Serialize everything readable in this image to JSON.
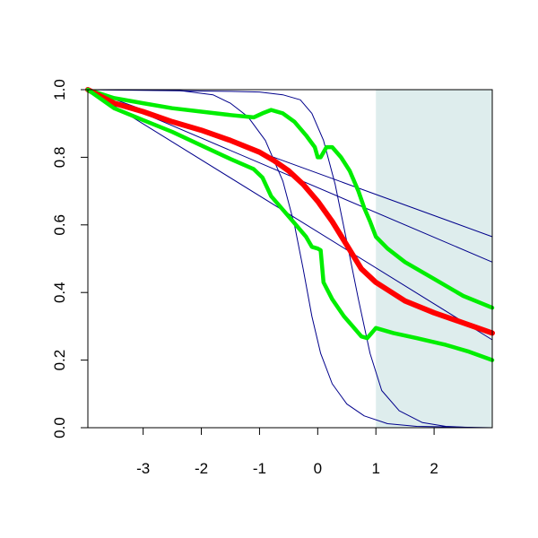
{
  "chart_data": {
    "type": "line",
    "title": "",
    "xlabel": "",
    "ylabel": "",
    "xlim": [
      -3.95,
      3.0
    ],
    "ylim": [
      0.0,
      1.0
    ],
    "x_ticks": [
      {
        "value": -3,
        "label": "-3"
      },
      {
        "value": -2,
        "label": "-2"
      },
      {
        "value": -1,
        "label": "-1"
      },
      {
        "value": 0,
        "label": "0"
      },
      {
        "value": 1,
        "label": "1"
      },
      {
        "value": 2,
        "label": "2"
      }
    ],
    "y_ticks": [
      {
        "value": 0.0,
        "label": "0.0"
      },
      {
        "value": 0.2,
        "label": "0.2"
      },
      {
        "value": 0.4,
        "label": "0.4"
      },
      {
        "value": 0.6,
        "label": "0.6"
      },
      {
        "value": 0.8,
        "label": "0.8"
      },
      {
        "value": 1.0,
        "label": "1.0"
      }
    ],
    "shaded_region": {
      "x_start": 1.0,
      "x_end": 3.0,
      "color": "#deeded"
    },
    "grid": false,
    "series": [
      {
        "color": "#00008b",
        "width": 1,
        "points": [
          [
            -3.95,
            1.0
          ],
          [
            3.0,
            0.565
          ]
        ]
      },
      {
        "color": "#00008b",
        "width": 1,
        "points": [
          [
            -3.95,
            1.0
          ],
          [
            3.0,
            0.49
          ]
        ]
      },
      {
        "color": "#00008b",
        "width": 1,
        "points": [
          [
            -3.95,
            1.0
          ],
          [
            3.0,
            0.26
          ]
        ]
      },
      {
        "color": "#00008b",
        "width": 1,
        "points": [
          [
            -3.95,
            1.0
          ],
          [
            -2.4,
            0.998
          ],
          [
            -1.8,
            0.985
          ],
          [
            -1.5,
            0.96
          ],
          [
            -1.2,
            0.92
          ],
          [
            -0.9,
            0.85
          ],
          [
            -0.6,
            0.73
          ],
          [
            -0.4,
            0.6
          ],
          [
            -0.25,
            0.47
          ],
          [
            -0.1,
            0.33
          ],
          [
            0.05,
            0.22
          ],
          [
            0.25,
            0.13
          ],
          [
            0.5,
            0.07
          ],
          [
            0.8,
            0.035
          ],
          [
            1.2,
            0.012
          ],
          [
            1.7,
            0.004
          ],
          [
            3.0,
            0.0
          ]
        ]
      },
      {
        "color": "#00008b",
        "width": 1,
        "points": [
          [
            -3.95,
            1.0
          ],
          [
            -1.5,
            0.995
          ],
          [
            -1.0,
            0.993
          ],
          [
            -0.6,
            0.985
          ],
          [
            -0.3,
            0.97
          ],
          [
            -0.1,
            0.93
          ],
          [
            0.1,
            0.85
          ],
          [
            0.3,
            0.72
          ],
          [
            0.5,
            0.55
          ],
          [
            0.7,
            0.38
          ],
          [
            0.9,
            0.22
          ],
          [
            1.1,
            0.11
          ],
          [
            1.4,
            0.05
          ],
          [
            1.8,
            0.015
          ],
          [
            2.2,
            0.004
          ],
          [
            2.7,
            0.0
          ]
        ]
      },
      {
        "color": "#00ee00",
        "width": 4.5,
        "points": [
          [
            -3.95,
            1.0
          ],
          [
            -3.5,
            0.975
          ],
          [
            -3.0,
            0.96
          ],
          [
            -2.5,
            0.945
          ],
          [
            -2.0,
            0.935
          ],
          [
            -1.5,
            0.925
          ],
          [
            -1.1,
            0.918
          ],
          [
            -0.95,
            0.93
          ],
          [
            -0.8,
            0.94
          ],
          [
            -0.6,
            0.93
          ],
          [
            -0.4,
            0.905
          ],
          [
            -0.2,
            0.865
          ],
          [
            -0.05,
            0.83
          ],
          [
            0.0,
            0.8
          ],
          [
            0.05,
            0.8
          ],
          [
            0.15,
            0.83
          ],
          [
            0.25,
            0.83
          ],
          [
            0.4,
            0.8
          ],
          [
            0.55,
            0.76
          ],
          [
            0.7,
            0.7
          ],
          [
            0.8,
            0.65
          ],
          [
            0.9,
            0.61
          ],
          [
            1.0,
            0.565
          ],
          [
            1.2,
            0.53
          ],
          [
            1.5,
            0.49
          ],
          [
            2.0,
            0.44
          ],
          [
            2.5,
            0.39
          ],
          [
            3.0,
            0.355
          ]
        ]
      },
      {
        "color": "#ff0000",
        "width": 6,
        "points": [
          [
            -3.95,
            1.0
          ],
          [
            -3.5,
            0.96
          ],
          [
            -3.0,
            0.935
          ],
          [
            -2.5,
            0.905
          ],
          [
            -2.0,
            0.88
          ],
          [
            -1.5,
            0.85
          ],
          [
            -1.0,
            0.815
          ],
          [
            -0.75,
            0.79
          ],
          [
            -0.5,
            0.76
          ],
          [
            -0.25,
            0.72
          ],
          [
            0.0,
            0.67
          ],
          [
            0.25,
            0.61
          ],
          [
            0.5,
            0.54
          ],
          [
            0.75,
            0.47
          ],
          [
            1.0,
            0.43
          ],
          [
            1.5,
            0.375
          ],
          [
            2.0,
            0.34
          ],
          [
            2.5,
            0.31
          ],
          [
            3.0,
            0.28
          ]
        ]
      },
      {
        "color": "#00ee00",
        "width": 4.5,
        "points": [
          [
            -3.95,
            1.0
          ],
          [
            -3.5,
            0.945
          ],
          [
            -3.0,
            0.91
          ],
          [
            -2.5,
            0.875
          ],
          [
            -2.0,
            0.835
          ],
          [
            -1.5,
            0.795
          ],
          [
            -1.1,
            0.765
          ],
          [
            -0.95,
            0.74
          ],
          [
            -0.8,
            0.685
          ],
          [
            -0.6,
            0.645
          ],
          [
            -0.4,
            0.605
          ],
          [
            -0.2,
            0.565
          ],
          [
            -0.1,
            0.535
          ],
          [
            0.0,
            0.53
          ],
          [
            0.05,
            0.525
          ],
          [
            0.1,
            0.43
          ],
          [
            0.25,
            0.38
          ],
          [
            0.45,
            0.33
          ],
          [
            0.6,
            0.3
          ],
          [
            0.75,
            0.27
          ],
          [
            0.85,
            0.265
          ],
          [
            0.95,
            0.285
          ],
          [
            1.0,
            0.295
          ],
          [
            1.3,
            0.28
          ],
          [
            1.7,
            0.265
          ],
          [
            2.2,
            0.245
          ],
          [
            2.6,
            0.225
          ],
          [
            3.0,
            0.2
          ]
        ]
      }
    ]
  }
}
